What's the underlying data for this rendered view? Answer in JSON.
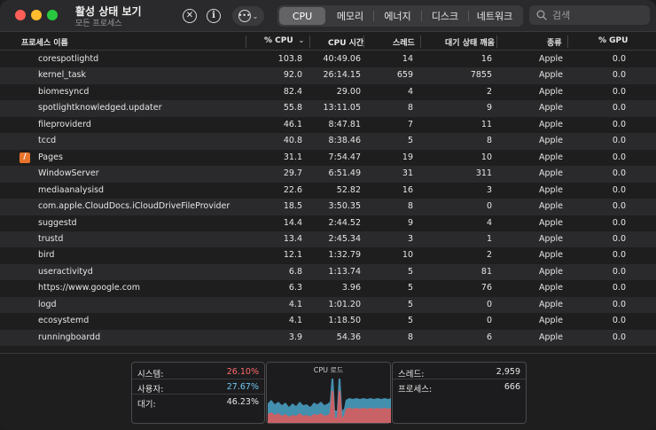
{
  "window": {
    "title": "활성 상태 보기",
    "subtitle": "모든 프로세스"
  },
  "toolbar": {
    "tabs": [
      {
        "label": "CPU",
        "active": true
      },
      {
        "label": "메모리",
        "active": false
      },
      {
        "label": "에너지",
        "active": false
      },
      {
        "label": "디스크",
        "active": false
      },
      {
        "label": "네트워크",
        "active": false
      }
    ],
    "search_placeholder": "검색"
  },
  "table": {
    "columns": {
      "name": "프로세스 이름",
      "cpu_pct": "% CPU",
      "cpu_time": "CPU 시간",
      "threads": "스레드",
      "idle_wake": "대기 상태 깨움",
      "kind": "종류",
      "gpu_pct": "% GPU"
    },
    "rows": [
      {
        "name": "corespotlightd",
        "cpu": "103.8",
        "time": "40:49.06",
        "threads": "14",
        "wake": "16",
        "kind": "Apple",
        "gpu": "0.0"
      },
      {
        "name": "kernel_task",
        "cpu": "92.0",
        "time": "26:14.15",
        "threads": "659",
        "wake": "7855",
        "kind": "Apple",
        "gpu": "0.0"
      },
      {
        "name": "biomesyncd",
        "cpu": "82.4",
        "time": "29.00",
        "threads": "4",
        "wake": "2",
        "kind": "Apple",
        "gpu": "0.0"
      },
      {
        "name": "spotlightknowledged.updater",
        "cpu": "55.8",
        "time": "13:11.05",
        "threads": "8",
        "wake": "9",
        "kind": "Apple",
        "gpu": "0.0"
      },
      {
        "name": "fileproviderd",
        "cpu": "46.1",
        "time": "8:47.81",
        "threads": "7",
        "wake": "11",
        "kind": "Apple",
        "gpu": "0.0"
      },
      {
        "name": "tccd",
        "cpu": "40.8",
        "time": "8:38.46",
        "threads": "5",
        "wake": "8",
        "kind": "Apple",
        "gpu": "0.0"
      },
      {
        "name": "Pages",
        "cpu": "31.1",
        "time": "7:54.47",
        "threads": "19",
        "wake": "10",
        "kind": "Apple",
        "gpu": "0.0",
        "icon": "pages-app-icon"
      },
      {
        "name": "WindowServer",
        "cpu": "29.7",
        "time": "6:51.49",
        "threads": "31",
        "wake": "311",
        "kind": "Apple",
        "gpu": "0.0"
      },
      {
        "name": "mediaanalysisd",
        "cpu": "22.6",
        "time": "52.82",
        "threads": "16",
        "wake": "3",
        "kind": "Apple",
        "gpu": "0.0"
      },
      {
        "name": "com.apple.CloudDocs.iCloudDriveFileProvider",
        "cpu": "18.5",
        "time": "3:50.35",
        "threads": "8",
        "wake": "0",
        "kind": "Apple",
        "gpu": "0.0"
      },
      {
        "name": "suggestd",
        "cpu": "14.4",
        "time": "2:44.52",
        "threads": "9",
        "wake": "4",
        "kind": "Apple",
        "gpu": "0.0"
      },
      {
        "name": "trustd",
        "cpu": "13.4",
        "time": "2:45.34",
        "threads": "3",
        "wake": "1",
        "kind": "Apple",
        "gpu": "0.0"
      },
      {
        "name": "bird",
        "cpu": "12.1",
        "time": "1:32.79",
        "threads": "10",
        "wake": "2",
        "kind": "Apple",
        "gpu": "0.0"
      },
      {
        "name": "useractivityd",
        "cpu": "6.8",
        "time": "1:13.74",
        "threads": "5",
        "wake": "81",
        "kind": "Apple",
        "gpu": "0.0"
      },
      {
        "name": "https://www.google.com",
        "cpu": "6.3",
        "time": "3.96",
        "threads": "5",
        "wake": "76",
        "kind": "Apple",
        "gpu": "0.0"
      },
      {
        "name": "logd",
        "cpu": "4.1",
        "time": "1:01.20",
        "threads": "5",
        "wake": "0",
        "kind": "Apple",
        "gpu": "0.0"
      },
      {
        "name": "ecosystemd",
        "cpu": "4.1",
        "time": "1:18.50",
        "threads": "5",
        "wake": "0",
        "kind": "Apple",
        "gpu": "0.0"
      },
      {
        "name": "runningboardd",
        "cpu": "3.9",
        "time": "54.36",
        "threads": "8",
        "wake": "6",
        "kind": "Apple",
        "gpu": "0.0"
      }
    ]
  },
  "footer": {
    "system_label": "시스템:",
    "system_value": "26.10%",
    "user_label": "사용자:",
    "user_value": "27.67%",
    "idle_label": "대기:",
    "idle_value": "46.23%",
    "chart_title": "CPU 로드",
    "threads_label": "스레드:",
    "threads_value": "2,959",
    "processes_label": "프로세스:",
    "processes_value": "666"
  },
  "colors": {
    "system": "#ff6a6a",
    "user": "#6ec6f0",
    "accent_tab": "#636366"
  }
}
